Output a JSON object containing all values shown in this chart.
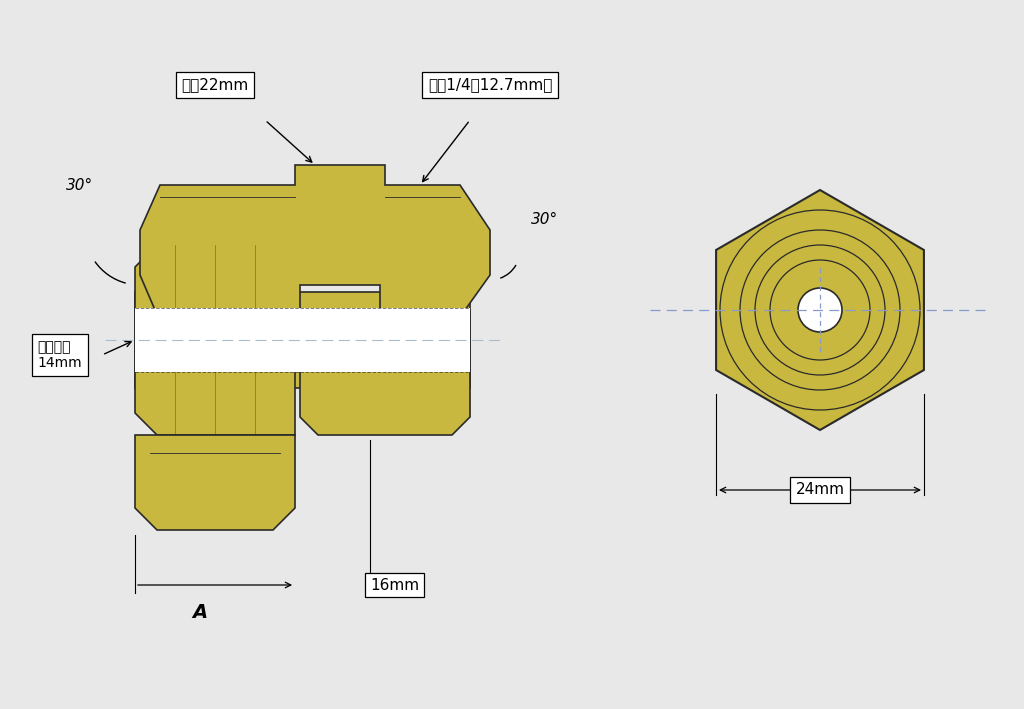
{
  "bg_color": "#e8e8e8",
  "brass_color": "#c8b840",
  "brass_edge": "#2a2a2a",
  "dim_line_color": "#5577bb",
  "black": "#000000",
  "white": "#ffffff",
  "label_30deg_left": "30°",
  "label_30deg_right": "30°",
  "label_od22": "外径22mm",
  "label_od14": "外径1/4（12.7mm）",
  "label_bore": "軸受内径\n14mm",
  "label_A": "A",
  "label_16mm": "16mm",
  "label_24mm": "24mm"
}
